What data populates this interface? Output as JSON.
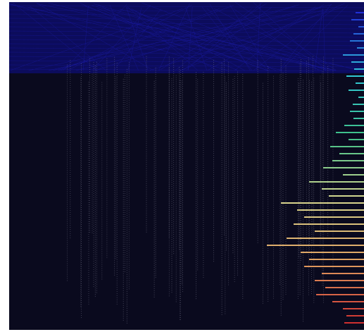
{
  "chart_data": {
    "type": "bar",
    "orientation": "horizontal",
    "values": [
      12,
      18,
      8,
      15,
      20,
      10,
      30,
      18,
      14,
      25,
      12,
      22,
      8,
      16,
      20,
      15,
      28,
      40,
      22,
      48,
      35,
      45,
      58,
      30,
      78,
      60,
      50,
      118,
      95,
      85,
      100,
      70,
      110,
      138,
      90,
      78,
      85,
      60,
      70,
      55,
      68,
      45,
      30,
      25,
      28
    ],
    "color_stops": [
      "#2030d8",
      "#30c8d8",
      "#40c088",
      "#d8d890",
      "#e0a060",
      "#d03030"
    ]
  }
}
